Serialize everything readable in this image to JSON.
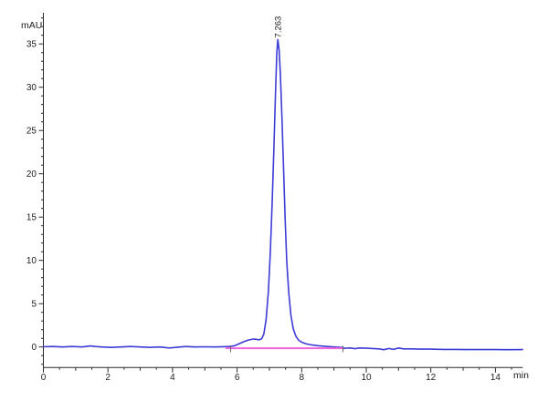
{
  "chart_data": {
    "type": "line",
    "title": "",
    "xlabel": "min",
    "ylabel": "mAU",
    "xlim": [
      0,
      14.85
    ],
    "ylim": [
      -2.37,
      38.6
    ],
    "grid": false,
    "legend": "none",
    "x_major_ticks": [
      0,
      2,
      4,
      6,
      8,
      10,
      12,
      14
    ],
    "x_major_tick_labels": [
      "0",
      "2",
      "4",
      "6",
      "8",
      "10",
      "12",
      "14"
    ],
    "x_minor_step": 0.5,
    "y_major_ticks": [
      0,
      5,
      10,
      15,
      20,
      25,
      30,
      35
    ],
    "y_major_tick_labels": [
      "0",
      "5",
      "10",
      "15",
      "20",
      "25",
      "30",
      "35"
    ],
    "y_minor_step": 1,
    "axis_color": "#2a2a2a",
    "series": [
      {
        "name": "detector-signal",
        "color": "#3c3cd6",
        "width": 1.6,
        "points": [
          [
            0,
            0.02
          ],
          [
            0.3,
            0.05
          ],
          [
            0.6,
            0.0
          ],
          [
            0.9,
            0.05
          ],
          [
            1.2,
            0.0
          ],
          [
            1.45,
            0.12
          ],
          [
            1.6,
            0.05
          ],
          [
            1.8,
            0.0
          ],
          [
            2.1,
            -0.05
          ],
          [
            2.4,
            0.0
          ],
          [
            2.7,
            0.05
          ],
          [
            3.0,
            0.0
          ],
          [
            3.3,
            -0.05
          ],
          [
            3.6,
            0.0
          ],
          [
            3.9,
            -0.12
          ],
          [
            4.1,
            -0.05
          ],
          [
            4.4,
            0.05
          ],
          [
            4.7,
            0.0
          ],
          [
            5.0,
            0.02
          ],
          [
            5.3,
            0.0
          ],
          [
            5.6,
            0.03
          ],
          [
            5.75,
            0.05
          ],
          [
            5.9,
            0.12
          ],
          [
            6.05,
            0.35
          ],
          [
            6.2,
            0.6
          ],
          [
            6.35,
            0.8
          ],
          [
            6.5,
            0.92
          ],
          [
            6.6,
            0.88
          ],
          [
            6.68,
            0.82
          ],
          [
            6.76,
            0.95
          ],
          [
            6.83,
            1.5
          ],
          [
            6.9,
            3.2
          ],
          [
            6.97,
            6.5
          ],
          [
            7.03,
            11
          ],
          [
            7.09,
            17
          ],
          [
            7.14,
            23
          ],
          [
            7.19,
            29.5
          ],
          [
            7.23,
            34
          ],
          [
            7.263,
            35.5
          ],
          [
            7.3,
            34.3
          ],
          [
            7.34,
            31.5
          ],
          [
            7.39,
            26.5
          ],
          [
            7.44,
            20.5
          ],
          [
            7.49,
            14.5
          ],
          [
            7.54,
            9.8
          ],
          [
            7.6,
            6.2
          ],
          [
            7.67,
            3.6
          ],
          [
            7.74,
            2.1
          ],
          [
            7.82,
            1.25
          ],
          [
            7.9,
            0.8
          ],
          [
            8.0,
            0.55
          ],
          [
            8.15,
            0.35
          ],
          [
            8.3,
            0.24
          ],
          [
            8.5,
            0.15
          ],
          [
            8.7,
            0.08
          ],
          [
            8.9,
            0.03
          ],
          [
            9.1,
            -0.02
          ],
          [
            9.26,
            -0.05
          ],
          [
            9.3,
            -0.16
          ],
          [
            9.5,
            -0.12
          ],
          [
            9.65,
            -0.2
          ],
          [
            9.8,
            -0.12
          ],
          [
            10.0,
            -0.15
          ],
          [
            10.2,
            -0.18
          ],
          [
            10.4,
            -0.22
          ],
          [
            10.55,
            -0.32
          ],
          [
            10.7,
            -0.18
          ],
          [
            10.85,
            -0.28
          ],
          [
            11.0,
            -0.12
          ],
          [
            11.15,
            -0.22
          ],
          [
            11.4,
            -0.22
          ],
          [
            11.7,
            -0.25
          ],
          [
            12.0,
            -0.25
          ],
          [
            12.4,
            -0.28
          ],
          [
            12.8,
            -0.28
          ],
          [
            13.2,
            -0.3
          ],
          [
            13.6,
            -0.3
          ],
          [
            14.0,
            -0.3
          ],
          [
            14.4,
            -0.32
          ],
          [
            14.84,
            -0.3
          ]
        ]
      },
      {
        "name": "integration-baseline",
        "color": "#f263dc",
        "width": 2,
        "points": [
          [
            5.67,
            -0.15
          ],
          [
            9.26,
            -0.15
          ]
        ]
      }
    ],
    "integration_marks": [
      5.8,
      9.28
    ],
    "integration_mark_color": "#666666",
    "peaks": [
      {
        "label": "7.263",
        "retention_time": 7.263,
        "height_mAU": 35.5
      }
    ]
  }
}
